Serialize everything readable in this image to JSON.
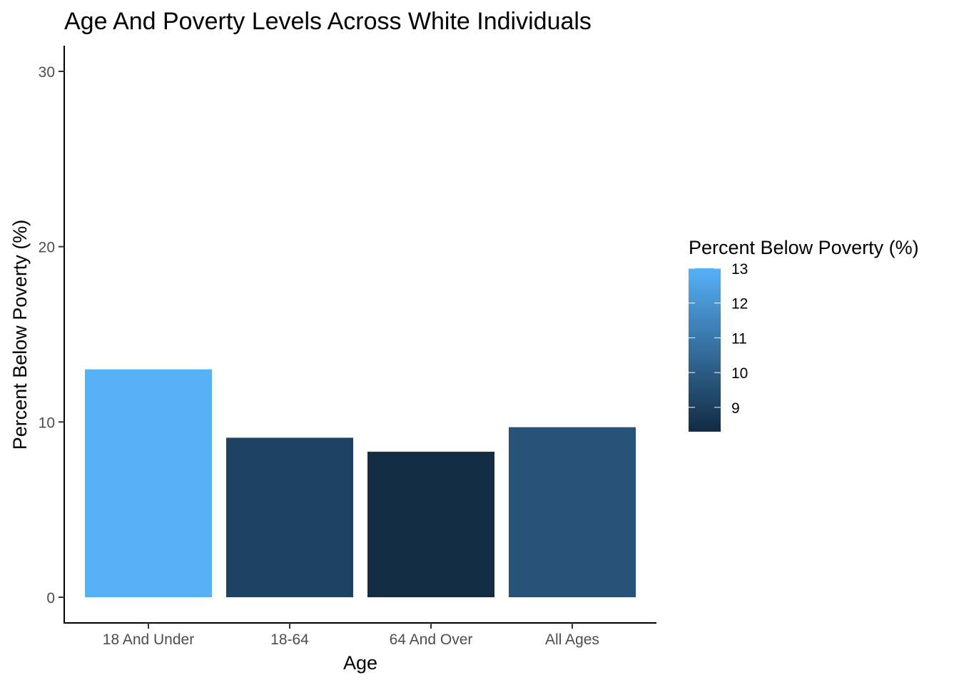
{
  "chart_data": {
    "type": "bar",
    "title": "Age And Poverty Levels Across White Individuals",
    "xlabel": "Age",
    "ylabel": "Percent Below Poverty (%)",
    "categories": [
      "18 And Under",
      "18-64",
      "64 And Over",
      "All Ages"
    ],
    "values": [
      13.0,
      9.1,
      8.3,
      9.7
    ],
    "ylim": [
      0,
      30
    ],
    "yticks": [
      0,
      10,
      20,
      30
    ],
    "grid": false,
    "legend": {
      "title": "Percent Below Poverty (%)",
      "placement": "right",
      "type": "colorbar",
      "range": [
        8.3,
        13.0
      ],
      "ticks": [
        9,
        10,
        11,
        12,
        13
      ],
      "color_low": "#132B43",
      "color_high": "#56B1F7"
    }
  }
}
